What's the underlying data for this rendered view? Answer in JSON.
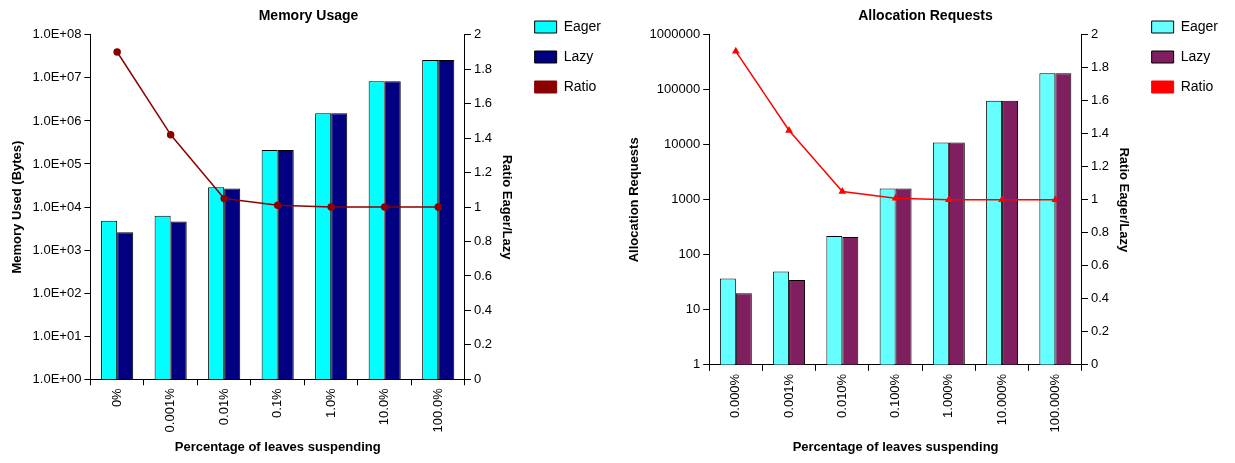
{
  "chart_data": [
    {
      "type": "bar",
      "title": "Memory Usage",
      "xlabel": "Percentage of leaves suspending",
      "ylabel": "Memory Used (Bytes)",
      "y2label": "Ratio Eager/Lazy",
      "categories": [
        "0%",
        "0.001%",
        "0.01%",
        "0.1%",
        "1.0%",
        "10.0%",
        "100.0%"
      ],
      "series": [
        {
          "name": "Eager",
          "color": "#00ffff",
          "values": [
            4800,
            6300,
            29000,
            210000,
            1500000,
            8300000,
            26000000
          ]
        },
        {
          "name": "Lazy",
          "color": "#000080",
          "values": [
            2600,
            4600,
            27000,
            210000,
            1500000,
            8300000,
            26000000
          ]
        },
        {
          "name": "Ratio",
          "type": "line",
          "axis": "y2",
          "color": "#8b0000",
          "values": [
            1.9,
            1.42,
            1.05,
            1.01,
            1.0,
            1.0,
            1.0
          ]
        }
      ],
      "log": "y",
      "ylim": [
        1,
        100000000
      ],
      "yticks": [
        {
          "value": 1,
          "label": "1.0E+00"
        },
        {
          "value": 10,
          "label": "1.0E+01"
        },
        {
          "value": 100,
          "label": "1.0E+02"
        },
        {
          "value": 1000,
          "label": "1.0E+03"
        },
        {
          "value": 10000,
          "label": "1.0E+04"
        },
        {
          "value": 100000,
          "label": "1.0E+05"
        },
        {
          "value": 1000000,
          "label": "1.0E+06"
        },
        {
          "value": 10000000,
          "label": "1.0E+07"
        },
        {
          "value": 100000000,
          "label": "1.0E+08"
        }
      ],
      "y2lim": [
        0,
        2
      ],
      "y2ticks": [
        0,
        0.2,
        0.4,
        0.6,
        0.8,
        1,
        1.2,
        1.4,
        1.6,
        1.8,
        2
      ],
      "marker": "circle",
      "grid": false,
      "legend": "top right"
    },
    {
      "type": "bar",
      "title": "Allocation Requests",
      "xlabel": "Percentage of leaves suspending",
      "ylabel": "Allocation Requests",
      "y2label": "Ratio Eager/Lazy",
      "categories": [
        "0.000%",
        "0.001%",
        "0.010%",
        "0.100%",
        "1.000%",
        "10.000%",
        "100.000%"
      ],
      "series": [
        {
          "name": "Eager",
          "color": "#66ffff",
          "values": [
            37,
            50,
            220,
            1600,
            11000,
            63000,
            200000
          ]
        },
        {
          "name": "Lazy",
          "color": "#7f1f5f",
          "values": [
            20,
            35,
            210,
            1600,
            11000,
            63000,
            200000
          ]
        },
        {
          "name": "Ratio",
          "type": "line",
          "axis": "y2",
          "color": "#ff0000",
          "values": [
            1.9,
            1.42,
            1.05,
            1.01,
            1.0,
            1.0,
            1.0
          ]
        }
      ],
      "log": "y",
      "ylim": [
        1,
        1000000
      ],
      "yticks": [
        1,
        10,
        100,
        1000,
        10000,
        100000,
        1000000
      ],
      "y2lim": [
        0,
        2
      ],
      "y2ticks": [
        0,
        0.2,
        0.4,
        0.6,
        0.8,
        1,
        1.2,
        1.4,
        1.6,
        1.8,
        2
      ],
      "marker": "triangle",
      "grid": false,
      "legend": "top right"
    }
  ]
}
